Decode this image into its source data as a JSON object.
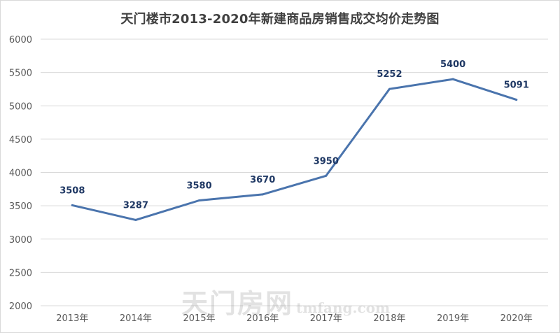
{
  "chart_data": {
    "type": "line",
    "title": "天门楼市2013-2020年新建商品房销售成交均价走势图",
    "categories": [
      "2013年",
      "2014年",
      "2015年",
      "2016年",
      "2017年",
      "2018年",
      "2019年",
      "2020年"
    ],
    "values": [
      3508,
      3287,
      3580,
      3670,
      3950,
      5252,
      5400,
      5091
    ],
    "ylim": [
      2000,
      6000
    ],
    "yticks": [
      2000,
      2500,
      3000,
      3500,
      4000,
      4500,
      5000,
      5500,
      6000
    ],
    "grid": true,
    "line_color": "#4a74ad",
    "label_color": "#1f3864"
  },
  "watermark": {
    "cn": "天门房网",
    "en": "tmfang.com"
  }
}
